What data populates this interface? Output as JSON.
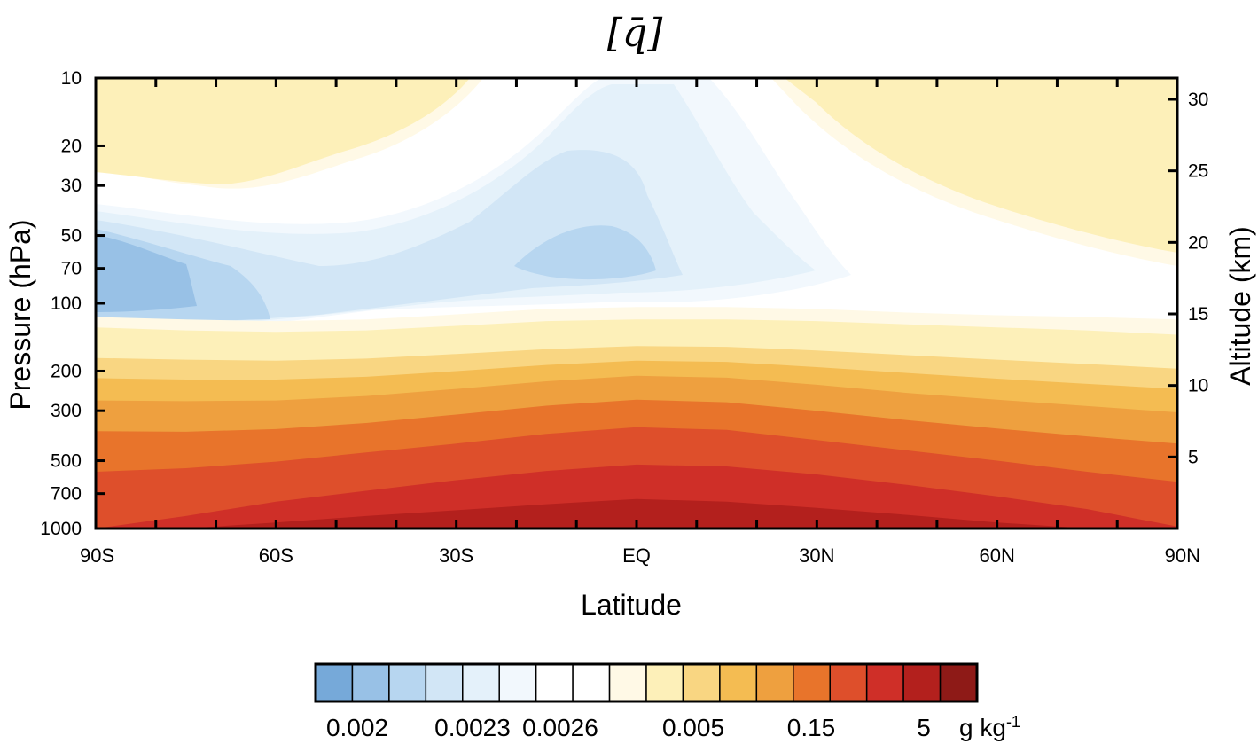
{
  "chart_data": {
    "type": "heatmap",
    "subtype": "filled-contour",
    "title": "[q̄]",
    "xlabel": "Latitude",
    "ylabel": "Pressure (hPa)",
    "ylabel_right": "Altitude (km)",
    "x_ticks": [
      "90S",
      "60S",
      "30S",
      "EQ",
      "30N",
      "60N",
      "90N"
    ],
    "x_tick_values": [
      -90,
      -60,
      -30,
      0,
      30,
      60,
      90
    ],
    "xlim": [
      -90,
      90
    ],
    "y_ticks": [
      "10",
      "20",
      "30",
      "50",
      "70",
      "100",
      "200",
      "300",
      "500",
      "700",
      "1000"
    ],
    "y_tick_values": [
      10,
      20,
      30,
      50,
      70,
      100,
      200,
      300,
      500,
      700,
      1000
    ],
    "ylim": [
      1000,
      10
    ],
    "y_scale": "log",
    "y_right_ticks": [
      "5",
      "10",
      "15",
      "20",
      "25",
      "30"
    ],
    "y_right_tick_values": [
      5,
      10,
      15,
      20,
      25,
      30
    ],
    "colorbar": {
      "labels": [
        "0.002",
        "0.0023",
        "0.0026",
        "0.005",
        "0.15",
        "5"
      ],
      "unit": "g kg",
      "unit_exp": "-1",
      "colors": [
        "#76a9d9",
        "#98c1e6",
        "#b7d6f0",
        "#d2e6f6",
        "#e4f1fa",
        "#f2f8fd",
        "#ffffff",
        "#ffffff",
        "#fff9e6",
        "#fdf0b9",
        "#f9d682",
        "#f4bc52",
        "#eea03f",
        "#e8742b",
        "#de4f2b",
        "#cf2f28",
        "#b3201d",
        "#8e1a17"
      ]
    },
    "contour_bands": [
      {
        "level": 0,
        "top": [
          [
            -90,
            1000
          ],
          [
            90,
            1000
          ]
        ],
        "bottom": "base"
      },
      {
        "level": 1,
        "band": [
          [
            -90,
            430
          ],
          [
            -60,
            470
          ],
          [
            -30,
            430
          ],
          [
            0,
            360
          ],
          [
            30,
            420
          ],
          [
            60,
            460
          ],
          [
            90,
            520
          ]
        ]
      },
      {
        "level": 2,
        "band": [
          [
            -90,
            330
          ],
          [
            -60,
            350
          ],
          [
            -30,
            320
          ],
          [
            0,
            260
          ],
          [
            30,
            310
          ],
          [
            60,
            340
          ],
          [
            90,
            380
          ]
        ]
      },
      {
        "level": 3,
        "band": [
          [
            -90,
            250
          ],
          [
            -60,
            265
          ],
          [
            -30,
            240
          ],
          [
            0,
            195
          ],
          [
            30,
            230
          ],
          [
            60,
            255
          ],
          [
            90,
            290
          ]
        ]
      },
      {
        "level": 4,
        "band": [
          [
            -90,
            200
          ],
          [
            -60,
            205
          ],
          [
            -30,
            180
          ],
          [
            0,
            155
          ],
          [
            30,
            175
          ],
          [
            60,
            195
          ],
          [
            90,
            225
          ]
        ]
      },
      {
        "level": 5,
        "band": [
          [
            -90,
            165
          ],
          [
            -60,
            160
          ],
          [
            -30,
            140
          ],
          [
            0,
            125
          ],
          [
            30,
            135
          ],
          [
            60,
            150
          ],
          [
            90,
            175
          ]
        ]
      }
    ],
    "grid": false,
    "legend": "bottom"
  }
}
